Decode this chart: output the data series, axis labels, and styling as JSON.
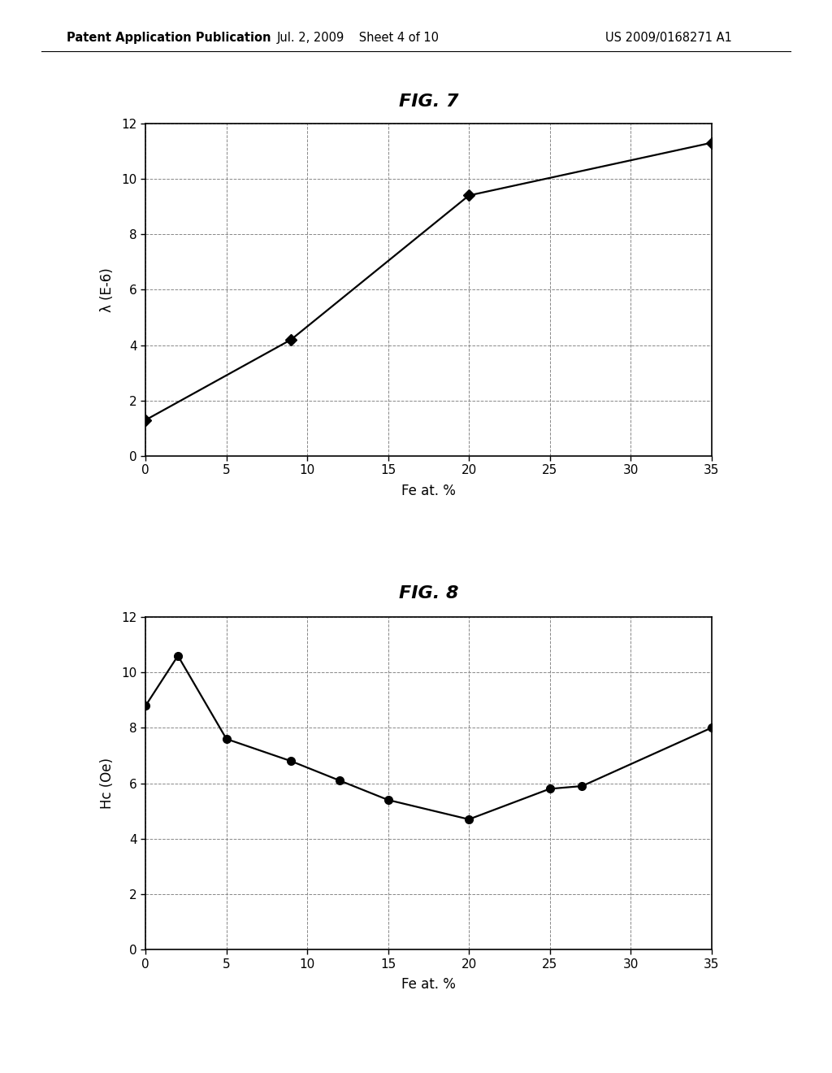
{
  "fig7": {
    "title": "FIG. 7",
    "x": [
      0,
      9,
      20,
      35
    ],
    "y": [
      1.3,
      4.2,
      9.4,
      11.3
    ],
    "xlabel": "Fe at. %",
    "ylabel": "λ (E-6)",
    "xlim": [
      0,
      35
    ],
    "ylim": [
      0,
      12
    ],
    "xticks": [
      0,
      5,
      10,
      15,
      20,
      25,
      30,
      35
    ],
    "yticks": [
      0,
      2,
      4,
      6,
      8,
      10,
      12
    ],
    "marker": "D",
    "markersize": 7,
    "color": "#000000",
    "grid_color": "#888888",
    "grid_style": "--"
  },
  "fig8": {
    "title": "FIG. 8",
    "x": [
      0,
      2,
      5,
      9,
      12,
      15,
      20,
      25,
      27,
      35
    ],
    "y": [
      8.8,
      10.6,
      7.6,
      6.8,
      6.1,
      5.4,
      4.7,
      5.8,
      5.9,
      8.0
    ],
    "xlabel": "Fe at. %",
    "ylabel": "Hc (Oe)",
    "xlim": [
      0,
      35
    ],
    "ylim": [
      0,
      12
    ],
    "xticks": [
      0,
      5,
      10,
      15,
      20,
      25,
      30,
      35
    ],
    "yticks": [
      0,
      2,
      4,
      6,
      8,
      10,
      12
    ],
    "marker": "o",
    "markersize": 7,
    "color": "#000000",
    "grid_color": "#888888",
    "grid_style": "--"
  },
  "header_left": "Patent Application Publication",
  "header_center": "Jul. 2, 2009    Sheet 4 of 10",
  "header_right": "US 2009/0168271 A1",
  "background_color": "#ffffff",
  "font_color": "#000000"
}
